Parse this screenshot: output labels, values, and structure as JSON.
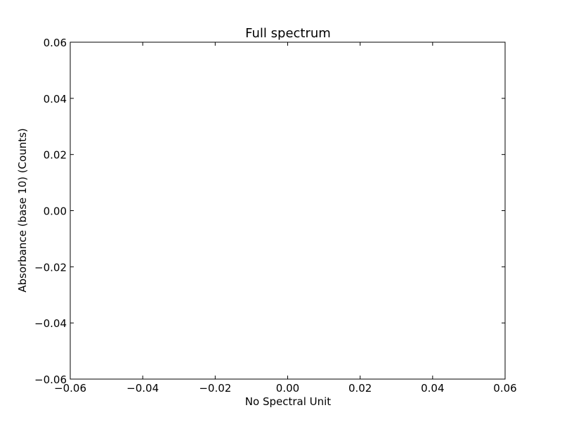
{
  "chart_data": {
    "type": "line",
    "title": "Full spectrum",
    "xlabel": "No Spectral Unit",
    "ylabel": "Absorbance (base 10) (Counts)",
    "xlim": [
      -0.06,
      0.06
    ],
    "ylim": [
      -0.06,
      0.06
    ],
    "x_ticks": [
      -0.06,
      -0.04,
      -0.02,
      0.0,
      0.02,
      0.04,
      0.06
    ],
    "y_ticks": [
      -0.06,
      -0.04,
      -0.02,
      0.0,
      0.02,
      0.04,
      0.06
    ],
    "x_tick_labels": [
      "−0.06",
      "−0.04",
      "−0.02",
      "0.00",
      "0.02",
      "0.04",
      "0.06"
    ],
    "y_tick_labels": [
      "−0.06",
      "−0.04",
      "−0.02",
      "0.00",
      "0.02",
      "0.04",
      "0.06"
    ],
    "series": [],
    "grid": false,
    "legend": "none"
  },
  "colors": {
    "axes": "#000000",
    "background": "#ffffff"
  }
}
